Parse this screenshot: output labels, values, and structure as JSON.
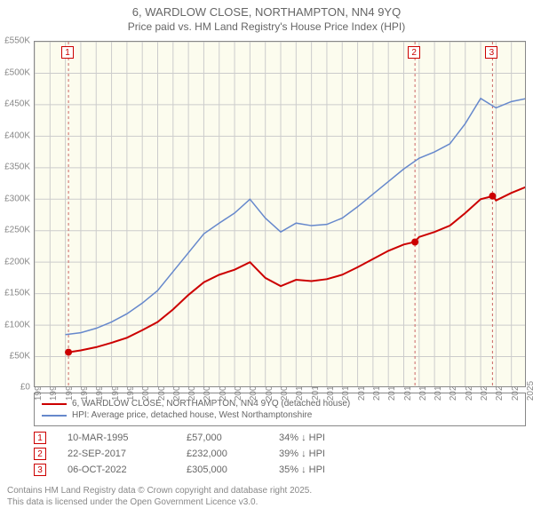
{
  "title": "6, WARDLOW CLOSE, NORTHAMPTON, NN4 9YQ",
  "subtitle": "Price paid vs. HM Land Registry's House Price Index (HPI)",
  "chart": {
    "type": "line",
    "background_color": "#fcfcee",
    "border_color": "#888888",
    "grid_color": "#cccccc",
    "marker_line_color": "#cc6666",
    "years": [
      1993,
      1994,
      1995,
      1996,
      1997,
      1998,
      1999,
      2000,
      2001,
      2002,
      2003,
      2004,
      2005,
      2006,
      2007,
      2008,
      2009,
      2010,
      2011,
      2012,
      2013,
      2014,
      2015,
      2016,
      2017,
      2018,
      2019,
      2020,
      2021,
      2022,
      2023,
      2024,
      2025
    ],
    "y_min": 0,
    "y_max": 550,
    "y_step": 50,
    "y_prefix": "£",
    "y_suffix": "K",
    "series": [
      {
        "name": "price_paid",
        "color": "#cc0000",
        "width": 2,
        "data": [
          [
            1995.2,
            57
          ],
          [
            1996,
            60
          ],
          [
            1997,
            65
          ],
          [
            1998,
            72
          ],
          [
            1999,
            80
          ],
          [
            2000,
            92
          ],
          [
            2001,
            105
          ],
          [
            2002,
            125
          ],
          [
            2003,
            148
          ],
          [
            2004,
            168
          ],
          [
            2005,
            180
          ],
          [
            2006,
            188
          ],
          [
            2007,
            200
          ],
          [
            2008,
            175
          ],
          [
            2009,
            162
          ],
          [
            2010,
            172
          ],
          [
            2011,
            170
          ],
          [
            2012,
            173
          ],
          [
            2013,
            180
          ],
          [
            2014,
            192
          ],
          [
            2015,
            205
          ],
          [
            2016,
            218
          ],
          [
            2017,
            228
          ],
          [
            2017.7,
            232
          ],
          [
            2018,
            240
          ],
          [
            2019,
            248
          ],
          [
            2020,
            258
          ],
          [
            2021,
            278
          ],
          [
            2022,
            300
          ],
          [
            2022.8,
            305
          ],
          [
            2023,
            298
          ],
          [
            2024,
            310
          ],
          [
            2025,
            320
          ]
        ]
      },
      {
        "name": "hpi",
        "color": "#6688cc",
        "width": 1.5,
        "data": [
          [
            1995,
            85
          ],
          [
            1996,
            88
          ],
          [
            1997,
            95
          ],
          [
            1998,
            105
          ],
          [
            1999,
            118
          ],
          [
            2000,
            135
          ],
          [
            2001,
            155
          ],
          [
            2002,
            185
          ],
          [
            2003,
            215
          ],
          [
            2004,
            245
          ],
          [
            2005,
            262
          ],
          [
            2006,
            278
          ],
          [
            2007,
            300
          ],
          [
            2008,
            270
          ],
          [
            2009,
            248
          ],
          [
            2010,
            262
          ],
          [
            2011,
            258
          ],
          [
            2012,
            260
          ],
          [
            2013,
            270
          ],
          [
            2014,
            288
          ],
          [
            2015,
            308
          ],
          [
            2016,
            328
          ],
          [
            2017,
            348
          ],
          [
            2018,
            365
          ],
          [
            2019,
            375
          ],
          [
            2020,
            388
          ],
          [
            2021,
            420
          ],
          [
            2022,
            460
          ],
          [
            2023,
            445
          ],
          [
            2024,
            455
          ],
          [
            2025,
            460
          ]
        ]
      }
    ],
    "markers": [
      {
        "label": "1",
        "year": 1995.2,
        "price": 57
      },
      {
        "label": "2",
        "year": 2017.73,
        "price": 232
      },
      {
        "label": "3",
        "year": 2022.77,
        "price": 305
      }
    ]
  },
  "legend": [
    {
      "color": "#cc0000",
      "text": "6, WARDLOW CLOSE, NORTHAMPTON, NN4 9YQ (detached house)"
    },
    {
      "color": "#6688cc",
      "text": "HPI: Average price, detached house, West Northamptonshire"
    }
  ],
  "transactions": [
    {
      "label": "1",
      "date": "10-MAR-1995",
      "price": "£57,000",
      "diff": "34% ↓ HPI"
    },
    {
      "label": "2",
      "date": "22-SEP-2017",
      "price": "£232,000",
      "diff": "39% ↓ HPI"
    },
    {
      "label": "3",
      "date": "06-OCT-2022",
      "price": "£305,000",
      "diff": "35% ↓ HPI"
    }
  ],
  "footnote_line1": "Contains HM Land Registry data © Crown copyright and database right 2025.",
  "footnote_line2": "This data is licensed under the Open Government Licence v3.0."
}
